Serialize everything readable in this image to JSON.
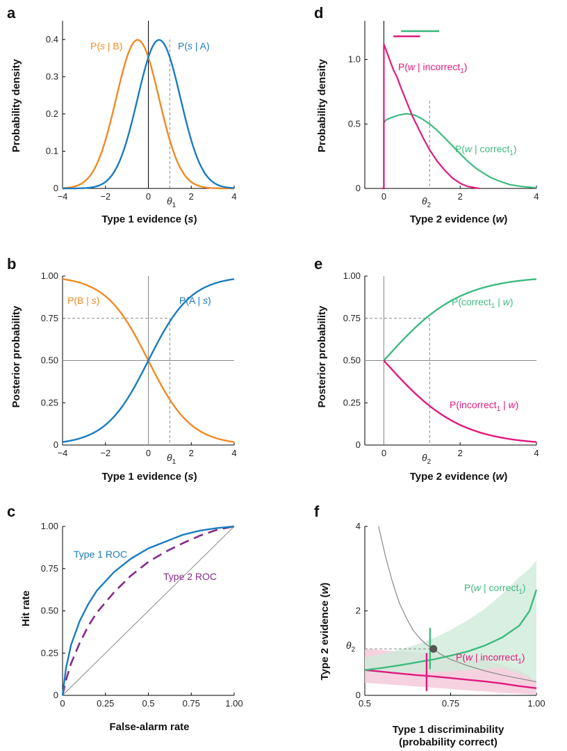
{
  "colors": {
    "orange": "#F08A24",
    "blue": "#1B7BC1",
    "green": "#3DBB7E",
    "pink": "#E0197D",
    "purple": "#862A8A",
    "gray": "#888888",
    "green_fill": "#CFEBD9",
    "pink_fill": "#F4C7D8"
  },
  "chart_data": [
    {
      "panel": "a",
      "type": "line",
      "xlabel": "Type 1 evidence (s)",
      "ylabel": "Probability density",
      "xlim": [
        -4,
        4
      ],
      "ylim": [
        0,
        0.45
      ],
      "xticks": [
        "−4",
        "−2",
        "0",
        "2",
        "4"
      ],
      "xtick_values": [
        -4,
        -2,
        0,
        2,
        4
      ],
      "yticks": [
        "0",
        "0.1",
        "0.2",
        "0.3",
        "0.4"
      ],
      "ytick_values": [
        0,
        0.1,
        0.2,
        0.3,
        0.4
      ],
      "threshold": {
        "label": "θ1",
        "x": 1
      },
      "series": [
        {
          "name": "P(s | B)",
          "distribution": "normal",
          "mean": -0.5,
          "sd": 1
        },
        {
          "name": "P(s | A)",
          "distribution": "normal",
          "mean": 0.5,
          "sd": 1
        }
      ]
    },
    {
      "panel": "b",
      "type": "line",
      "xlabel": "Type 1 evidence (s)",
      "ylabel": "Posterior probability",
      "xlim": [
        -4,
        4
      ],
      "ylim": [
        0,
        1
      ],
      "xticks": [
        "−4",
        "−2",
        "0",
        "2",
        "4"
      ],
      "xtick_values": [
        -4,
        -2,
        0,
        2,
        4
      ],
      "yticks": [
        "0",
        "0.25",
        "0.50",
        "0.75",
        "1.00"
      ],
      "ytick_values": [
        0,
        0.25,
        0.5,
        0.75,
        1
      ],
      "threshold": {
        "label": "θ1",
        "x": 1,
        "y": 0.75
      },
      "series": [
        {
          "name": "P(B | s)",
          "function": "logistic",
          "slope": -1,
          "x": [
            -4,
            -3,
            -2,
            -1,
            0,
            1,
            2,
            3,
            4
          ],
          "y": [
            0.982,
            0.953,
            0.881,
            0.731,
            0.5,
            0.269,
            0.119,
            0.047,
            0.018
          ]
        },
        {
          "name": "P(A | s)",
          "function": "logistic",
          "slope": 1,
          "x": [
            -4,
            -3,
            -2,
            -1,
            0,
            1,
            2,
            3,
            4
          ],
          "y": [
            0.018,
            0.047,
            0.119,
            0.269,
            0.5,
            0.731,
            0.881,
            0.953,
            0.982
          ]
        }
      ]
    },
    {
      "panel": "c",
      "type": "line",
      "xlabel": "False-alarm rate",
      "ylabel": "Hit rate",
      "xlim": [
        0,
        1
      ],
      "ylim": [
        0,
        1
      ],
      "xticks": [
        "0",
        "0.25",
        "0.5",
        "0.75",
        "1.00"
      ],
      "xtick_values": [
        0,
        0.25,
        0.5,
        0.75,
        1
      ],
      "yticks": [
        "0",
        "0.25",
        "0.50",
        "0.75",
        "1.00"
      ],
      "ytick_values": [
        0,
        0.25,
        0.5,
        0.75,
        1
      ],
      "series": [
        {
          "name": "Type 1 ROC",
          "x": [
            0,
            0.02,
            0.05,
            0.1,
            0.15,
            0.2,
            0.3,
            0.4,
            0.5,
            0.6,
            0.7,
            0.8,
            0.9,
            1.0
          ],
          "y": [
            0,
            0.16,
            0.3,
            0.44,
            0.54,
            0.62,
            0.73,
            0.81,
            0.87,
            0.91,
            0.95,
            0.975,
            0.99,
            1.0
          ]
        },
        {
          "name": "Type 2 ROC",
          "x": [
            0,
            0.02,
            0.05,
            0.1,
            0.15,
            0.2,
            0.3,
            0.4,
            0.5,
            0.6,
            0.7,
            0.8,
            0.9,
            1.0
          ],
          "y": [
            0,
            0.09,
            0.19,
            0.31,
            0.41,
            0.49,
            0.61,
            0.71,
            0.79,
            0.85,
            0.9,
            0.945,
            0.98,
            1.0
          ],
          "dashed": true
        },
        {
          "name": "",
          "x": [
            0,
            1
          ],
          "y": [
            0,
            1
          ],
          "diagonal": true
        }
      ]
    },
    {
      "panel": "d",
      "type": "line",
      "xlabel": "Type 2 evidence (w)",
      "ylabel": "Probability density",
      "xlim": [
        -0.5,
        4
      ],
      "ylim": [
        0,
        1.3
      ],
      "xticks": [
        "0",
        "2",
        "4"
      ],
      "xtick_values": [
        0,
        2,
        4
      ],
      "yticks": [
        "0",
        "0.5",
        "1.0"
      ],
      "ytick_values": [
        0,
        0.5,
        1.0
      ],
      "threshold": {
        "label": "θ2",
        "x": 1.2,
        "y_top": 0.68
      },
      "series": [
        {
          "name": "P(w | incorrect1)",
          "x": [
            0,
            0.05,
            0.15,
            0.25,
            0.35,
            0.45,
            0.6,
            0.75,
            0.9,
            1.05,
            1.2,
            1.4,
            1.6,
            1.8,
            2.0,
            2.2,
            2.5
          ],
          "y": [
            1.12,
            1.08,
            1.0,
            0.92,
            0.86,
            0.78,
            0.67,
            0.56,
            0.47,
            0.38,
            0.3,
            0.21,
            0.14,
            0.08,
            0.04,
            0.015,
            0
          ]
        },
        {
          "name": "P(w | correct1)",
          "x": [
            0,
            0.05,
            0.2,
            0.4,
            0.6,
            0.8,
            1.0,
            1.2,
            1.4,
            1.6,
            1.8,
            2.0,
            2.2,
            2.4,
            2.6,
            2.8,
            3.0,
            3.3,
            3.6,
            4.0
          ],
          "y": [
            0.51,
            0.53,
            0.55,
            0.57,
            0.58,
            0.57,
            0.54,
            0.5,
            0.45,
            0.39,
            0.33,
            0.27,
            0.21,
            0.16,
            0.12,
            0.085,
            0.06,
            0.03,
            0.015,
            0.005
          ]
        }
      ],
      "bars": [
        {
          "series": "P(w | correct1)",
          "x1": 0.45,
          "x2": 1.45,
          "y": 1.22
        },
        {
          "series": "P(w | incorrect1)",
          "x1": 0.25,
          "x2": 0.95,
          "y": 1.18
        }
      ]
    },
    {
      "panel": "e",
      "type": "line",
      "xlabel": "Type 2 evidence (w)",
      "ylabel": "Posterior probability",
      "xlim": [
        -0.5,
        4
      ],
      "ylim": [
        0,
        1
      ],
      "xticks": [
        "0",
        "2",
        "4"
      ],
      "xtick_values": [
        0,
        2,
        4
      ],
      "yticks": [
        "0",
        "0.25",
        "0.50",
        "0.75",
        "1.00"
      ],
      "ytick_values": [
        0,
        0.25,
        0.5,
        0.75,
        1
      ],
      "threshold": {
        "label": "θ2",
        "x": 1.2,
        "y": 0.75
      },
      "series": [
        {
          "name": "P(correct1 | w)",
          "x": [
            0,
            0.5,
            1,
            1.2,
            1.5,
            2,
            2.5,
            3,
            3.5,
            4
          ],
          "y": [
            0.5,
            0.622,
            0.731,
            0.769,
            0.818,
            0.881,
            0.924,
            0.953,
            0.971,
            0.982
          ]
        },
        {
          "name": "P(incorrect1 | w)",
          "x": [
            0,
            0.5,
            1,
            1.2,
            1.5,
            2,
            2.5,
            3,
            3.5,
            4
          ],
          "y": [
            0.5,
            0.378,
            0.269,
            0.231,
            0.182,
            0.119,
            0.076,
            0.047,
            0.029,
            0.018
          ]
        }
      ]
    },
    {
      "panel": "f",
      "type": "area",
      "xlabel": "Type 1 discriminability",
      "xlabel2": "(probability correct)",
      "ylabel": "Type 2 evidence (w)",
      "xlim": [
        0.5,
        1.0
      ],
      "ylim": [
        0,
        4
      ],
      "xticks": [
        "0.5",
        "0.75",
        "1.00"
      ],
      "xtick_values": [
        0.5,
        0.75,
        1.0
      ],
      "yticks": [
        "0",
        "2",
        "4"
      ],
      "ytick_values": [
        0,
        2,
        4
      ],
      "threshold": {
        "label": "θ2",
        "y": 1.1,
        "x": 0.7
      },
      "series": [
        {
          "name": "P(w | correct1)",
          "x": [
            0.5,
            0.55,
            0.6,
            0.65,
            0.7,
            0.75,
            0.8,
            0.85,
            0.9,
            0.95,
            0.98,
            1.0
          ],
          "y": [
            0.6,
            0.65,
            0.71,
            0.78,
            0.85,
            0.94,
            1.04,
            1.18,
            1.37,
            1.65,
            2.0,
            2.5
          ],
          "lower": [
            0.55,
            0.52,
            0.52,
            0.55,
            0.55,
            0.57,
            0.6,
            0.62,
            0.65,
            0.52,
            0.4,
            0.3
          ],
          "upper": [
            0.9,
            0.98,
            1.08,
            1.2,
            1.35,
            1.55,
            1.78,
            2.05,
            2.4,
            2.8,
            3.0,
            3.2
          ]
        },
        {
          "name": "P(w | incorrect1)",
          "x": [
            0.5,
            0.55,
            0.6,
            0.65,
            0.7,
            0.75,
            0.8,
            0.85,
            0.9,
            0.95,
            1.0
          ],
          "y": [
            0.6,
            0.56,
            0.52,
            0.48,
            0.45,
            0.41,
            0.37,
            0.33,
            0.28,
            0.22,
            0.17
          ],
          "lower": [
            0.3,
            0.27,
            0.24,
            0.21,
            0.18,
            0.15,
            0.12,
            0.09,
            0.06,
            0.04,
            0.02
          ],
          "upper": [
            1.1,
            1.07,
            1.04,
            1.02,
            1.0,
            0.95,
            0.9,
            0.82,
            0.72,
            0.6,
            0.35
          ]
        },
        {
          "name": "",
          "x": [
            0.54,
            0.56,
            0.58,
            0.6,
            0.62,
            0.64,
            0.66,
            0.68,
            0.7,
            0.72,
            0.75,
            0.8,
            0.85,
            0.9,
            0.95,
            1.0
          ],
          "y": [
            4.0,
            3.3,
            2.7,
            2.2,
            1.85,
            1.55,
            1.35,
            1.2,
            1.1,
            0.98,
            0.85,
            0.7,
            0.58,
            0.48,
            0.4,
            0.32
          ],
          "thin": true
        }
      ],
      "markers": [
        {
          "series": "P(w | correct1)",
          "x": 0.69,
          "y1": 0.62,
          "y2": 1.6
        },
        {
          "series": "P(w | incorrect1)",
          "x": 0.68,
          "y1": 0.1,
          "y2": 1.0
        }
      ]
    }
  ],
  "panels": {
    "a": {
      "letter": "a",
      "y_ticks": [
        "0",
        "0.1",
        "0.2",
        "0.3",
        "0.4"
      ],
      "x_ticks": [
        "−4",
        "−2",
        "0",
        "2",
        "4"
      ]
    },
    "b": {
      "letter": "b",
      "y_ticks": [
        "0",
        "0.25",
        "0.50",
        "0.75",
        "1.00"
      ],
      "x_ticks": [
        "−4",
        "−2",
        "0",
        "2",
        "4"
      ]
    },
    "c": {
      "letter": "c",
      "y_ticks": [
        "0",
        "0.25",
        "0.50",
        "0.75",
        "1.00"
      ],
      "x_ticks": [
        "0",
        "0.25",
        "0.5",
        "0.75",
        "1.00"
      ]
    },
    "d": {
      "letter": "d",
      "y_ticks": [
        "0",
        "0.5",
        "1.0"
      ],
      "x_ticks": [
        "0",
        "2",
        "4"
      ]
    },
    "e": {
      "letter": "e",
      "y_ticks": [
        "0",
        "0.25",
        "0.50",
        "0.75",
        "1.00"
      ],
      "x_ticks": [
        "0",
        "2",
        "4"
      ]
    },
    "f": {
      "letter": "f",
      "y_ticks": [
        "0",
        "2",
        "4"
      ],
      "x_ticks": [
        "0.5",
        "0.75",
        "1.00"
      ]
    }
  },
  "labels": {
    "a_ylabel": "Probability density",
    "a_xlabel_main": "Type 1 evidence (",
    "a_xlabel_var": "s",
    "a_xlabel_end": ")",
    "b_ylabel": "Posterior probability",
    "b_xlabel_main": "Type 1 evidence (",
    "b_xlabel_var": "s",
    "b_xlabel_end": ")",
    "c_ylabel": "Hit rate",
    "c_xlabel": "False-alarm rate",
    "d_ylabel": "Probability density",
    "d_xlabel_main": "Type 2 evidence (",
    "d_xlabel_var": "w",
    "d_xlabel_end": ")",
    "e_ylabel": "Posterior probability",
    "e_xlabel_main": "Type 2 evidence (",
    "e_xlabel_var": "w",
    "e_xlabel_end": ")",
    "f_ylabel_main": "Type 2  evidence (",
    "f_ylabel_var": "w",
    "f_ylabel_end": ")",
    "f_xlabel_1": "Type 1  discriminability",
    "f_xlabel_2": "(probability correct)",
    "theta": "θ",
    "sub1": "1",
    "sub2": "2"
  },
  "annotations": {
    "psB_pre": "P(",
    "psB_var": "s",
    "psB_post": " | B)",
    "psA_pre": "P(",
    "psA_var": "s",
    "psA_post": " | A)",
    "pBs_pre": "P(B | ",
    "pBs_var": "s",
    "pBs_post": ")",
    "pAs_pre": "P(A | ",
    "pAs_var": "s",
    "pAs_post": ")",
    "roc1": "Type 1  ROC",
    "roc2": "Type 2  ROC",
    "pwi_pre": "P(",
    "pwi_var": "w",
    "pwi_mid": " | incorrect",
    "pwi_sub": "1",
    "pwi_post": ")",
    "pwc_pre": "P(",
    "pwc_var": "w",
    "pwc_mid": " | correct",
    "pwc_sub": "1",
    "pwc_post": ")",
    "pcw_pre": "P(correct",
    "pcw_sub": "1",
    "pcw_mid": " | ",
    "pcw_var": "w",
    "pcw_post": ")",
    "piw_pre": "P(incorrect",
    "piw_sub": "1",
    "piw_mid": " | ",
    "piw_var": "w",
    "piw_post": ")",
    "fpwc_pre": "P(",
    "fpwc_var": "w",
    "fpwc_mid": " | correct",
    "fpwc_sub": "1",
    "fpwc_post": ")",
    "fpwi_pre": "P(",
    "fpwi_var": "w",
    "fpwi_mid": " | incorrect",
    "fpwi_sub": "1",
    "fpwi_post": ")"
  }
}
